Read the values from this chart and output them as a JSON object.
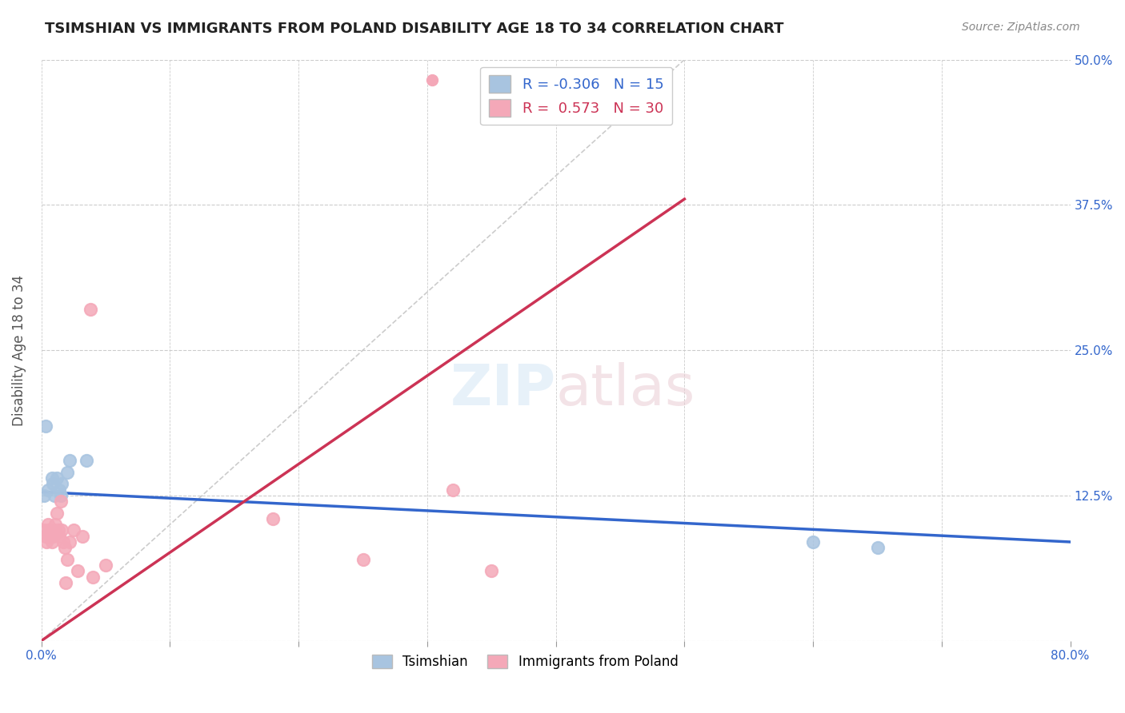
{
  "title": "TSIMSHIAN VS IMMIGRANTS FROM POLAND DISABILITY AGE 18 TO 34 CORRELATION CHART",
  "source": "Source: ZipAtlas.com",
  "xlabel_bottom": "",
  "ylabel": "Disability Age 18 to 34",
  "x_min": 0.0,
  "x_max": 0.8,
  "y_min": 0.0,
  "y_max": 0.5,
  "x_ticks": [
    0.0,
    0.1,
    0.2,
    0.3,
    0.4,
    0.5,
    0.6,
    0.7,
    0.8
  ],
  "x_tick_labels": [
    "0.0%",
    "",
    "",
    "",
    "",
    "",
    "",
    "",
    "80.0%"
  ],
  "y_ticks": [
    0.0,
    0.125,
    0.25,
    0.375,
    0.5
  ],
  "y_tick_labels": [
    "",
    "12.5%",
    "25.0%",
    "37.5%",
    "50.0%"
  ],
  "grid_color": "#cccccc",
  "background_color": "#ffffff",
  "watermark": "ZIPatlas",
  "legend_R1": "-0.306",
  "legend_N1": "15",
  "legend_R2": "0.573",
  "legend_N2": "30",
  "tsimshian_color": "#a8c4e0",
  "poland_color": "#f4a8b8",
  "tsimshian_line_color": "#3366cc",
  "poland_line_color": "#cc3355",
  "diagonal_color": "#cccccc",
  "tsimshian_points_x": [
    0.002,
    0.005,
    0.008,
    0.009,
    0.01,
    0.012,
    0.014,
    0.015,
    0.016,
    0.02,
    0.022,
    0.035,
    0.6,
    0.65,
    0.003
  ],
  "tsimshian_points_y": [
    0.125,
    0.13,
    0.14,
    0.135,
    0.125,
    0.14,
    0.13,
    0.125,
    0.135,
    0.145,
    0.155,
    0.155,
    0.085,
    0.08,
    0.185
  ],
  "poland_points_x": [
    0.002,
    0.003,
    0.004,
    0.005,
    0.006,
    0.007,
    0.008,
    0.009,
    0.01,
    0.011,
    0.012,
    0.013,
    0.014,
    0.015,
    0.016,
    0.017,
    0.018,
    0.019,
    0.02,
    0.022,
    0.025,
    0.028,
    0.032,
    0.038,
    0.04,
    0.05,
    0.18,
    0.25,
    0.35,
    0.32
  ],
  "poland_points_y": [
    0.095,
    0.09,
    0.085,
    0.1,
    0.095,
    0.09,
    0.085,
    0.09,
    0.095,
    0.1,
    0.11,
    0.095,
    0.09,
    0.12,
    0.095,
    0.085,
    0.08,
    0.05,
    0.07,
    0.085,
    0.095,
    0.06,
    0.09,
    0.285,
    0.055,
    0.065,
    0.105,
    0.07,
    0.06,
    0.13
  ],
  "tsimshian_line_x": [
    0.0,
    0.8
  ],
  "tsimshian_line_y": [
    0.128,
    0.085
  ],
  "poland_line_x": [
    0.0,
    0.5
  ],
  "poland_line_y": [
    0.0,
    0.38
  ],
  "diag_line_x": [
    0.0,
    0.5
  ],
  "diag_line_y": [
    0.0,
    0.5
  ]
}
